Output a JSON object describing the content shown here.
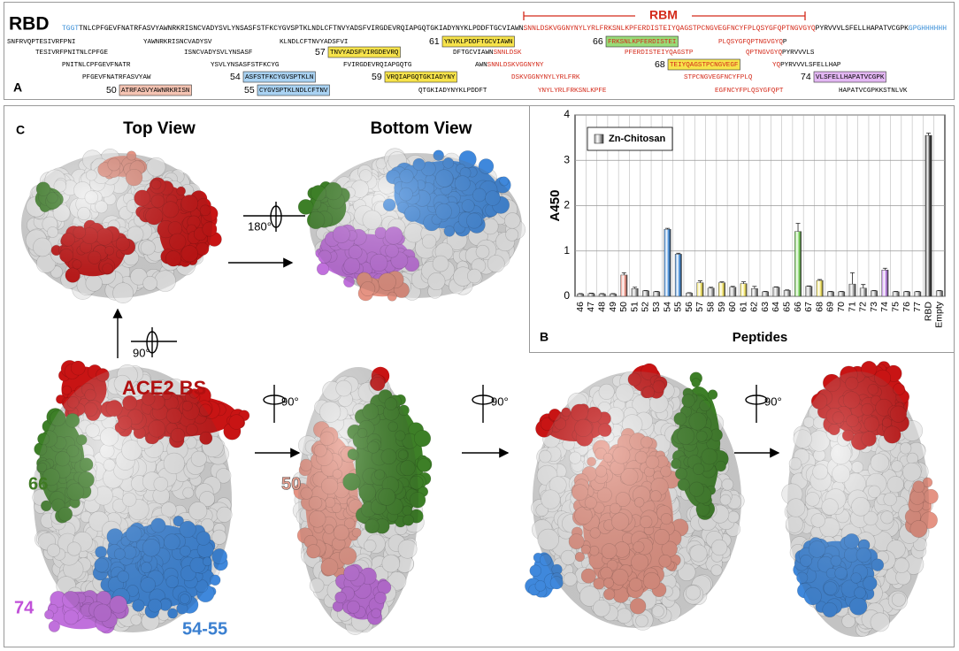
{
  "panel_a": {
    "label": "A",
    "title": "RBD",
    "rbm_label": "RBM",
    "sequence": [
      {
        "text": "TGGT",
        "color": "#3a8fd8"
      },
      {
        "text": "TNLCPFGEVFNATRFASVYAWNRKRISNCVADYSVLYNSASFSTFKCYGVSPTKLNDLCFTNVYADSFVIRGDEVRQIAPGQTGKIADYNYKLPDDFTGCVIAWN",
        "color": "#000000"
      },
      {
        "text": "SNNLDSKVGGNYNYLYRLFRKSNLKPFERDISTEIYQAGSTPCNGVEGFNCYFPLQSYGFQPTNGVGYQ",
        "color": "#d42a1a"
      },
      {
        "text": "PYRVVVLSFELLHAPATVCGPK",
        "color": "#000000"
      },
      {
        "text": "GPGHHHHHH",
        "color": "#3a8fd8"
      }
    ],
    "peptides": [
      {
        "parts": [
          {
            "text": "SNFRVQPTESIVRFPNI",
            "color": "#000000"
          }
        ]
      },
      {
        "parts": [
          {
            "text": "YAWNRKRISNCVADYSV",
            "color": "#000000"
          }
        ]
      },
      {
        "parts": [
          {
            "text": "KLNDLCFTNVYADSFVI",
            "color": "#000000"
          }
        ]
      },
      {
        "number": "61",
        "box_color": "#f7e34b",
        "parts": [
          {
            "text": "YNYKLPDDFTGCVIAWN",
            "color": "#000000"
          }
        ]
      },
      {
        "number": "66",
        "box_color": "#98dc78",
        "parts": [
          {
            "text": "FRKSNLKPFERDISTEI",
            "color": "#d42a1a"
          }
        ]
      },
      {
        "parts": [
          {
            "text": "PLQSYGFQPTNGVGYQ",
            "color": "#d42a1a"
          },
          {
            "text": "P",
            "color": "#000000"
          }
        ]
      },
      {
        "parts": [
          {
            "text": "TESIVRFPNITNLCPFGE",
            "color": "#000000"
          }
        ]
      },
      {
        "parts": [
          {
            "text": "ISNCVADYSVLYNSASF",
            "color": "#000000"
          }
        ]
      },
      {
        "number": "57",
        "box_color": "#f7e34b",
        "parts": [
          {
            "text": "TNVYADSFVIRGDEVRQ",
            "color": "#000000"
          }
        ]
      },
      {
        "parts": [
          {
            "text": "DFTGCVIAWN",
            "color": "#000000"
          },
          {
            "text": "SNNLDSK",
            "color": "#d42a1a"
          }
        ]
      },
      {
        "parts": [
          {
            "text": "PFERDISTEIYQAGSTP",
            "color": "#d42a1a"
          }
        ]
      },
      {
        "parts": [
          {
            "text": "QPTNGVGYQ",
            "color": "#d42a1a"
          },
          {
            "text": "PYRVVVLS",
            "color": "#000000"
          }
        ]
      },
      {
        "parts": [
          {
            "text": "PNITNLCPFGEVFNATR",
            "color": "#000000"
          }
        ]
      },
      {
        "parts": [
          {
            "text": "YSVLYNSASFSTFKCYG",
            "color": "#000000"
          }
        ]
      },
      {
        "parts": [
          {
            "text": "FVIRGDEVRQIAPGQTG",
            "color": "#000000"
          }
        ]
      },
      {
        "parts": [
          {
            "text": "AWN",
            "color": "#000000"
          },
          {
            "text": "SNNLDSKVGGNYNY",
            "color": "#d42a1a"
          }
        ]
      },
      {
        "number": "68",
        "box_color": "#f7e34b",
        "parts": [
          {
            "text": "TEIYQAGSTPCNGVEGF",
            "color": "#d42a1a"
          }
        ]
      },
      {
        "parts": [
          {
            "text": "YQ",
            "color": "#d42a1a"
          },
          {
            "text": "PYRVVVLSFELLHAP",
            "color": "#000000"
          }
        ]
      },
      {
        "parts": [
          {
            "text": "PFGEVFNATRFASVYAW",
            "color": "#000000"
          }
        ]
      },
      {
        "number": "54",
        "box_color": "#a9d2f2",
        "parts": [
          {
            "text": "ASFSTFKCYGVSPTKLN",
            "color": "#000000"
          }
        ]
      },
      {
        "number": "59",
        "box_color": "#f7e34b",
        "parts": [
          {
            "text": "VRQIAPGQTGKIADYNY",
            "color": "#000000"
          }
        ]
      },
      {
        "parts": [
          {
            "text": "DSKVGGNYNYLYRLFRK",
            "color": "#d42a1a"
          }
        ]
      },
      {
        "parts": [
          {
            "text": "STPCNGVEGFNCYFPLQ",
            "color": "#d42a1a"
          }
        ]
      },
      {
        "number": "74",
        "box_color": "#e2b6f2",
        "parts": [
          {
            "text": "VLSFELLHAPATVCGPK",
            "color": "#000000"
          }
        ]
      },
      {
        "number": "50",
        "box_color": "#f4c3b2",
        "parts": [
          {
            "text": "ATRFASVYAWNRKRISN",
            "color": "#000000"
          }
        ]
      },
      {
        "number": "55",
        "box_color": "#a9d2f2",
        "parts": [
          {
            "text": "CYGVSPTKLNDLCFTNV",
            "color": "#000000"
          }
        ]
      },
      {
        "parts": [
          {
            "text": "QTGKIADYNYKLPDDFT",
            "color": "#000000"
          }
        ]
      },
      {
        "parts": [
          {
            "text": "YNYLYRLFRKSNLKPFE",
            "color": "#d42a1a"
          }
        ]
      },
      {
        "parts": [
          {
            "text": "EGFNCYFPLQSYGFQPT",
            "color": "#d42a1a"
          }
        ]
      },
      {
        "parts": [
          {
            "text": "HAPATVCGPKKSTNLVK",
            "color": "#000000"
          }
        ]
      }
    ]
  },
  "chart_data": {
    "type": "bar",
    "panel_label": "B",
    "x_label": "Peptides",
    "y_label": "A450",
    "categories": [
      "46",
      "47",
      "48",
      "49",
      "50",
      "51",
      "52",
      "53",
      "54",
      "55",
      "56",
      "57",
      "58",
      "59",
      "60",
      "61",
      "62",
      "63",
      "64",
      "65",
      "66",
      "67",
      "68",
      "69",
      "70",
      "71",
      "72",
      "73",
      "74",
      "75",
      "76",
      "77",
      "RBD",
      "Empty"
    ],
    "series": [
      {
        "name": "Zn-Chitosan",
        "color": "#9a9a9a",
        "values": [
          0.05,
          0.06,
          0.05,
          0.05,
          0.47,
          0.17,
          0.12,
          0.1,
          1.48,
          0.93,
          0.07,
          0.3,
          0.18,
          0.3,
          0.2,
          0.28,
          0.17,
          0.1,
          0.2,
          0.13,
          1.43,
          0.22,
          0.35,
          0.1,
          0.1,
          0.27,
          0.18,
          0.12,
          0.58,
          0.1,
          0.1,
          0.1,
          3.55,
          0.12
        ],
        "errors": [
          0.01,
          0.01,
          0.01,
          0.01,
          0.05,
          0.03,
          0.01,
          0.01,
          0.02,
          0.02,
          0.01,
          0.04,
          0.02,
          0.02,
          0.02,
          0.04,
          0.05,
          0.01,
          0.01,
          0.01,
          0.18,
          0.01,
          0.02,
          0.01,
          0.01,
          0.25,
          0.08,
          0.01,
          0.04,
          0.01,
          0.01,
          0.01,
          0.05,
          0.01
        ]
      }
    ],
    "bar_colors": [
      "#9a9a9a",
      "#9a9a9a",
      "#9a9a9a",
      "#9a9a9a",
      "#ec8f80",
      "#9a9a9a",
      "#9a9a9a",
      "#9a9a9a",
      "#3a86d6",
      "#3a86d6",
      "#9a9a9a",
      "#eedd55",
      "#9a9a9a",
      "#eedd55",
      "#9a9a9a",
      "#eedd55",
      "#9a9a9a",
      "#9a9a9a",
      "#9a9a9a",
      "#9a9a9a",
      "#6fcf4f",
      "#9a9a9a",
      "#eedd55",
      "#9a9a9a",
      "#9a9a9a",
      "#9a9a9a",
      "#9a9a9a",
      "#9a9a9a",
      "#b77be0",
      "#9a9a9a",
      "#9a9a9a",
      "#9a9a9a",
      "#333333",
      "#9a9a9a"
    ],
    "ylim": [
      0,
      4
    ],
    "yticks": [
      0,
      1,
      2,
      3,
      4
    ],
    "grid": true,
    "legend": "top-left"
  },
  "panel_c": {
    "label": "C",
    "top_view": "Top View",
    "bottom_view": "Bottom View",
    "rotations": [
      "180°",
      "90°",
      "90°",
      "90°",
      "90°"
    ],
    "ace2_site": "ACE2 BS",
    "peptide_66": "66",
    "peptide_50": "50",
    "peptide_74": "74",
    "peptide_54_55": "54-55"
  }
}
